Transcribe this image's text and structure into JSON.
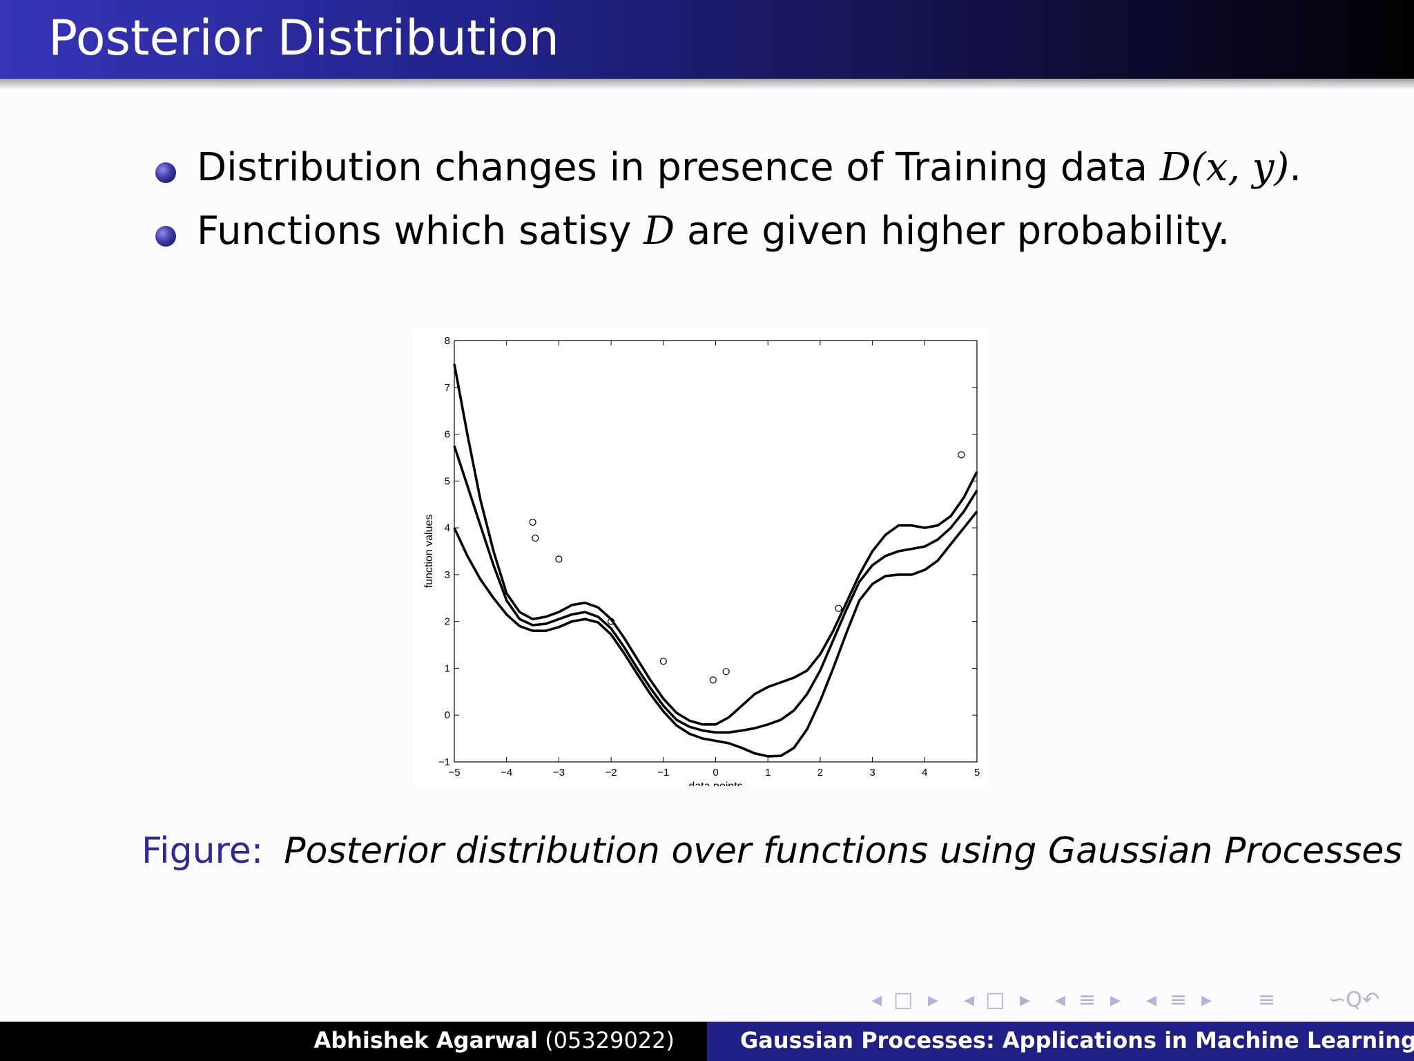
{
  "slide": {
    "title": "Posterior Distribution",
    "bullets": [
      {
        "text": "Distribution changes in presence of Training data ",
        "math": "(x, y)",
        "end": "."
      },
      {
        "text_before": "Functions which satisy ",
        "text_after": " are given higher probability."
      }
    ],
    "calligraphic_D": "D"
  },
  "figure": {
    "label": "Figure:",
    "caption": "Posterior distribution over functions using Gaussian Processes"
  },
  "chart_data": {
    "type": "line",
    "title": "",
    "xlabel": "data points",
    "ylabel": "function values",
    "xlim": [
      -5,
      5
    ],
    "ylim": [
      -1,
      8
    ],
    "xticks": [
      -5,
      -4,
      -3,
      -2,
      -1,
      0,
      1,
      2,
      3,
      4,
      5
    ],
    "yticks": [
      -1,
      0,
      1,
      2,
      3,
      4,
      5,
      6,
      7,
      8
    ],
    "grid": false,
    "series": [
      {
        "x": [
          -5,
          -4.75,
          -4.5,
          -4.25,
          -4,
          -3.75,
          -3.5,
          -3.25,
          -3,
          -2.75,
          -2.5,
          -2.25,
          -2,
          -1.75,
          -1.5,
          -1.25,
          -1,
          -0.75,
          -0.5,
          -0.25,
          0,
          0.25,
          0.5,
          0.75,
          1,
          1.25,
          1.5,
          1.75,
          2,
          2.25,
          2.5,
          2.75,
          3,
          3.25,
          3.5,
          3.75,
          4,
          4.25,
          4.5,
          4.75,
          5
        ],
        "y": [
          7.5,
          6.0,
          4.6,
          3.5,
          2.6,
          2.2,
          2.05,
          2.1,
          2.2,
          2.35,
          2.4,
          2.3,
          2.05,
          1.65,
          1.2,
          0.75,
          0.35,
          0.05,
          -0.12,
          -0.2,
          -0.2,
          -0.05,
          0.2,
          0.45,
          0.6,
          0.7,
          0.8,
          0.95,
          1.3,
          1.8,
          2.4,
          3.0,
          3.5,
          3.85,
          4.05,
          4.05,
          4.0,
          4.05,
          4.25,
          4.65,
          5.2
        ]
      },
      {
        "x": [
          -5,
          -4.75,
          -4.5,
          -4.25,
          -4,
          -3.75,
          -3.5,
          -3.25,
          -3,
          -2.75,
          -2.5,
          -2.25,
          -2,
          -1.75,
          -1.5,
          -1.25,
          -1,
          -0.75,
          -0.5,
          -0.25,
          0,
          0.25,
          0.5,
          0.75,
          1,
          1.25,
          1.5,
          1.75,
          2,
          2.25,
          2.5,
          2.75,
          3,
          3.25,
          3.5,
          3.75,
          4,
          4.25,
          4.5,
          4.75,
          5
        ],
        "y": [
          5.75,
          4.9,
          4.05,
          3.2,
          2.45,
          2.05,
          1.92,
          1.95,
          2.05,
          2.15,
          2.2,
          2.1,
          1.85,
          1.45,
          1.0,
          0.58,
          0.2,
          -0.1,
          -0.25,
          -0.33,
          -0.37,
          -0.37,
          -0.33,
          -0.28,
          -0.2,
          -0.1,
          0.1,
          0.45,
          0.95,
          1.6,
          2.25,
          2.85,
          3.2,
          3.4,
          3.5,
          3.55,
          3.6,
          3.75,
          4.0,
          4.35,
          4.8
        ]
      },
      {
        "x": [
          -5,
          -4.75,
          -4.5,
          -4.25,
          -4,
          -3.75,
          -3.5,
          -3.25,
          -3,
          -2.75,
          -2.5,
          -2.25,
          -2,
          -1.75,
          -1.5,
          -1.25,
          -1,
          -0.75,
          -0.5,
          -0.25,
          0,
          0.25,
          0.5,
          0.75,
          1,
          1.25,
          1.5,
          1.75,
          2,
          2.25,
          2.5,
          2.75,
          3,
          3.25,
          3.5,
          3.75,
          4,
          4.25,
          4.5,
          4.75,
          5
        ],
        "y": [
          4.0,
          3.4,
          2.9,
          2.5,
          2.15,
          1.9,
          1.8,
          1.8,
          1.88,
          2.0,
          2.05,
          1.98,
          1.72,
          1.32,
          0.88,
          0.45,
          0.08,
          -0.22,
          -0.4,
          -0.5,
          -0.55,
          -0.6,
          -0.7,
          -0.82,
          -0.88,
          -0.87,
          -0.7,
          -0.3,
          0.3,
          1.0,
          1.75,
          2.45,
          2.8,
          2.97,
          3.0,
          3.0,
          3.1,
          3.3,
          3.65,
          4.0,
          4.35
        ]
      }
    ],
    "points": {
      "x": [
        -3.5,
        -3.45,
        -3.0,
        -2.0,
        -1.0,
        -0.05,
        0.2,
        2.35,
        4.7
      ],
      "y": [
        4.12,
        3.78,
        3.33,
        2.0,
        1.15,
        0.75,
        0.93,
        2.28,
        5.56
      ]
    }
  },
  "footer": {
    "author_name": "Abhishek Agarwal",
    "author_id": "(05329022)",
    "talk_title": "Gaussian Processes: Applications in Machine Learning"
  },
  "nav": {
    "left_arrow": "◂",
    "right_arrow": "▸",
    "frame_icon": "□",
    "subsection_icon": "≡",
    "search_icon": "∽Q↶"
  }
}
